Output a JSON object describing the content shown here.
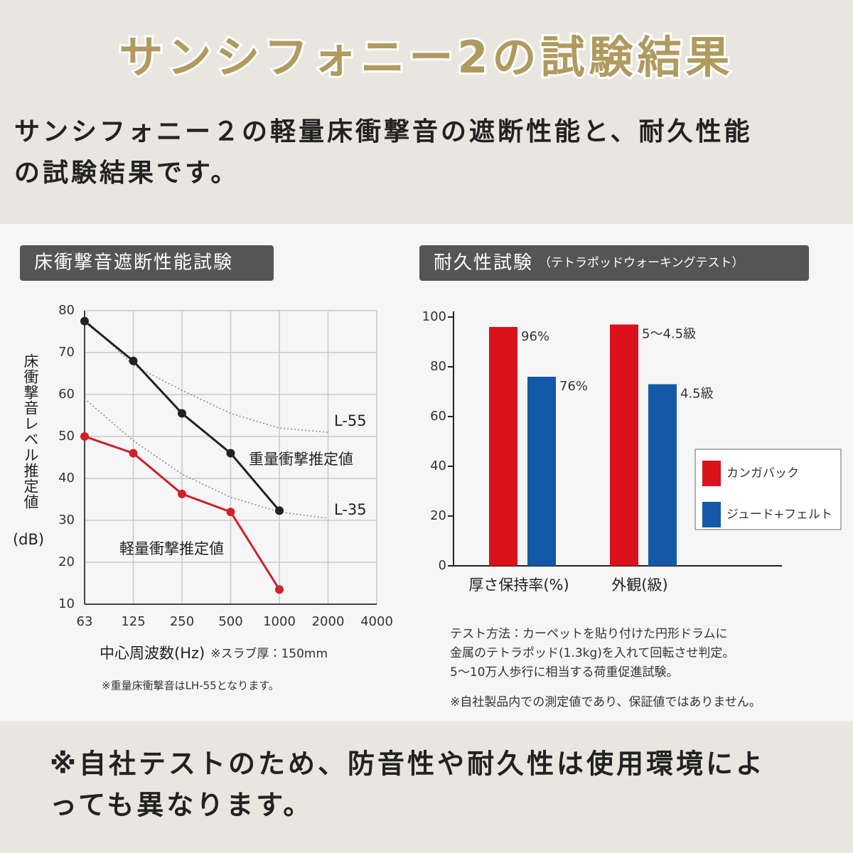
{
  "header": {
    "title": "サンシフォニー2の試験結果",
    "lead": [
      "サンシフォニー２の軽量床衝撃音の遮断性能と、耐久性能",
      "の試験結果です。"
    ]
  },
  "chart_data": [
    {
      "type": "line",
      "title": "床衝撃音遮断性能試験",
      "ylabel": "床衝撃音レベル推定値",
      "yunit": "(dB)",
      "xlabel": "中心周波数(Hz)",
      "xnote": "※スラブ厚：150mm",
      "footnote": "※重量床衝撃音はLH-55となります。",
      "categories": [
        "63",
        "125",
        "250",
        "500",
        "1000",
        "2000",
        "4000"
      ],
      "ylim": [
        10,
        80
      ],
      "yticks": [
        10,
        20,
        30,
        40,
        50,
        60,
        70,
        80
      ],
      "grid": true,
      "series": [
        {
          "name": "L-55",
          "color": "#888888",
          "dashed": true,
          "values": [
            78,
            67,
            61,
            55.5,
            52,
            51,
            null
          ]
        },
        {
          "name": "L-35",
          "color": "#888888",
          "dashed": true,
          "values": [
            59,
            49,
            41,
            35.5,
            32,
            30.5,
            null
          ]
        },
        {
          "name": "重量衝撃推定値",
          "color": "#222222",
          "markers": true,
          "values": [
            77.5,
            68,
            55.5,
            46,
            32.3,
            null,
            null
          ]
        },
        {
          "name": "軽量衝撃推定値",
          "color": "#d0202a",
          "markers": true,
          "values": [
            50,
            46,
            36.3,
            32,
            13.5,
            null,
            null
          ]
        }
      ]
    },
    {
      "type": "bar",
      "title": "耐久性試験",
      "subtitle": "（テトラポッドウォーキングテスト）",
      "categories": [
        "厚さ保持率(%)",
        "外観(級)"
      ],
      "ylim": [
        0,
        100
      ],
      "yticks": [
        0,
        20,
        40,
        60,
        80,
        100
      ],
      "legend": "right",
      "series": [
        {
          "name": "カンガバック",
          "color": "#d9121b",
          "values": [
            96,
            97
          ],
          "value_labels": [
            "96%",
            "5〜4.5級"
          ]
        },
        {
          "name": "ジュード+フェルト",
          "color": "#1459a8",
          "values": [
            76,
            73
          ],
          "value_labels": [
            "76%",
            "4.5級"
          ]
        }
      ],
      "notes": [
        "テスト方法：カーペットを貼り付けた円形ドラムに",
        "金属のテトラポッド(1.3kg)を入れて回転させ判定。",
        "5〜10万人歩行に相当する荷重促進試験。"
      ],
      "footnote": "※自社製品内での測定値であり、保証値ではありません。"
    }
  ],
  "footer": {
    "note": [
      "※自社テストのため、防音性や耐久性は使用環境によ",
      "っても異なります。"
    ]
  }
}
